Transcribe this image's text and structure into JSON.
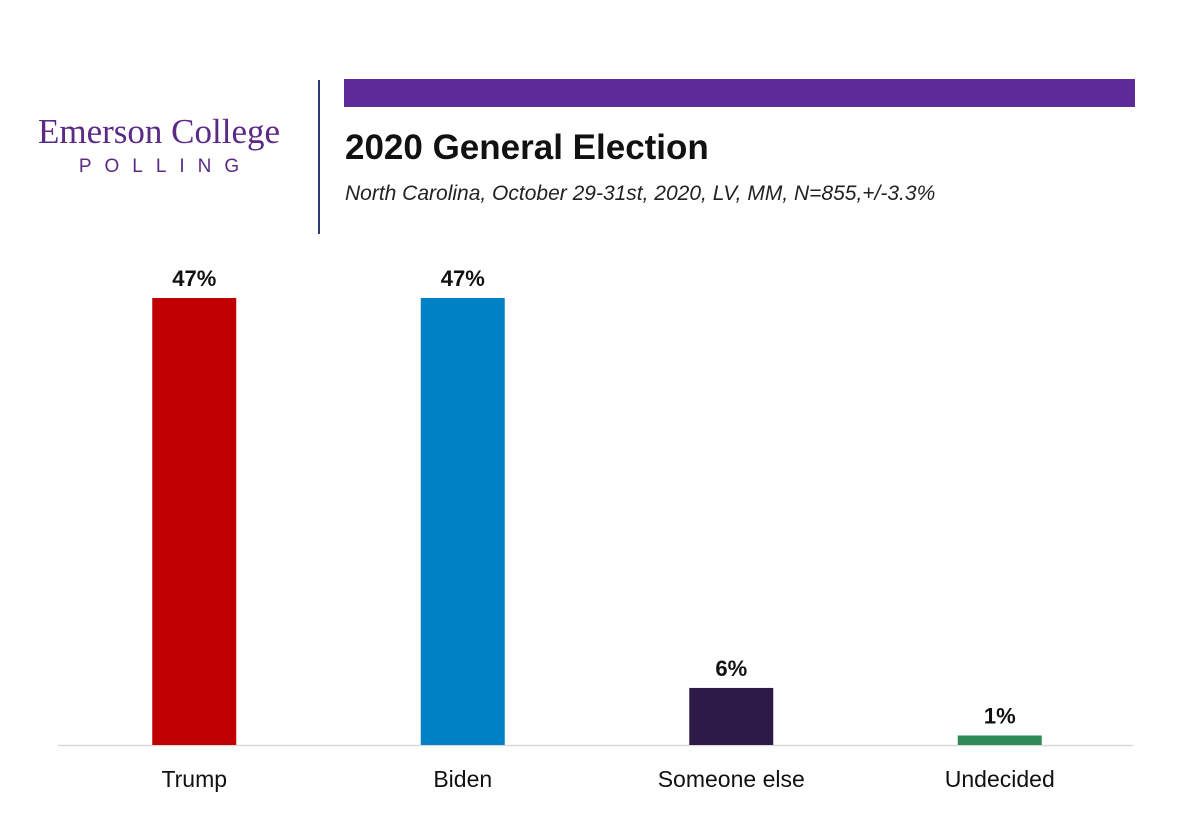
{
  "header": {
    "logo_brand": "Emerson College",
    "logo_sub": "POLLING",
    "title": "2020 General Election",
    "subtitle": "North Carolina, October 29-31st, 2020, LV, MM,  N=855,+/-3.3%",
    "accent_color": "#5e2a97",
    "brand_color": "#5b2a86"
  },
  "chart_data": {
    "type": "bar",
    "title": "2020 General Election",
    "subtitle": "North Carolina, October 29-31st, 2020, LV, MM,  N=855,+/-3.3%",
    "categories": [
      "Trump",
      "Biden",
      "Someone else",
      "Undecided"
    ],
    "values": [
      47,
      47,
      6,
      1
    ],
    "value_labels": [
      "47%",
      "47%",
      "6%",
      "1%"
    ],
    "colors": [
      "#c00000",
      "#0081c6",
      "#2e1a47",
      "#2e8b57"
    ],
    "xlabel": "",
    "ylabel": "",
    "ylim": [
      0,
      47
    ],
    "grid": false,
    "legend": "none"
  }
}
